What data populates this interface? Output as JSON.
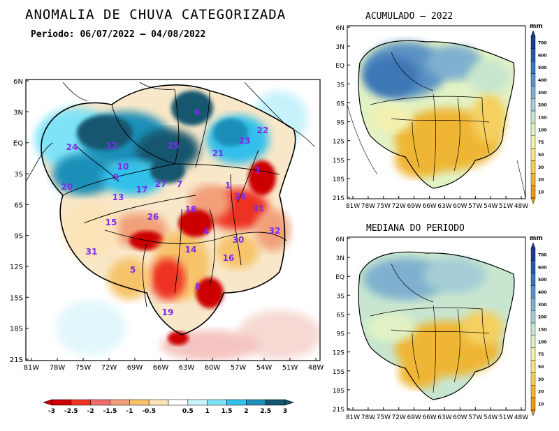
{
  "main": {
    "title": "ANOMALIA DE CHUVA CATEGORIZADA",
    "period": "Periodo: 06/07/2022 – 04/08/2022",
    "lat_labels": [
      "6N",
      "3N",
      "EQ",
      "3S",
      "6S",
      "9S",
      "12S",
      "15S",
      "18S",
      "21S"
    ],
    "lon_labels": [
      "81W",
      "78W",
      "75W",
      "72W",
      "69W",
      "66W",
      "63W",
      "60W",
      "57W",
      "54W",
      "51W",
      "48W"
    ],
    "basin_numbers": [
      {
        "id": "6"
      },
      {
        "id": "24"
      },
      {
        "id": "12"
      },
      {
        "id": "25"
      },
      {
        "id": "21"
      },
      {
        "id": "23"
      },
      {
        "id": "22"
      },
      {
        "id": "10"
      },
      {
        "id": "9"
      },
      {
        "id": "20"
      },
      {
        "id": "17"
      },
      {
        "id": "13"
      },
      {
        "id": "27"
      },
      {
        "id": "7"
      },
      {
        "id": "3"
      },
      {
        "id": "28"
      },
      {
        "id": "1"
      },
      {
        "id": "18"
      },
      {
        "id": "31"
      },
      {
        "id": "26"
      },
      {
        "id": "15"
      },
      {
        "id": "4"
      },
      {
        "id": "32"
      },
      {
        "id": "30"
      },
      {
        "id": "31"
      },
      {
        "id": "14"
      },
      {
        "id": "16"
      },
      {
        "id": "5"
      },
      {
        "id": "8"
      },
      {
        "id": "19"
      }
    ],
    "colorbar": {
      "labels": [
        "-3",
        "-2.5",
        "-2",
        "-1.5",
        "-1",
        "-0.5",
        "0.5",
        "1",
        "1.5",
        "2",
        "2.5",
        "3"
      ],
      "colors": [
        "#cc0000",
        "#ee3322",
        "#f26a6a",
        "#f2a07a",
        "#f7c36a",
        "#fbe3b8",
        "#ffffff",
        "#c8f3fb",
        "#7fe3f7",
        "#33c0ea",
        "#1f8fb8",
        "#14566e"
      ]
    }
  },
  "right_top": {
    "title": "ACUMULADO – 2022",
    "lat_labels": [
      "6N",
      "3N",
      "EQ",
      "3S",
      "6S",
      "9S",
      "12S",
      "15S",
      "18S",
      "21S"
    ],
    "lon_labels": [
      "81W",
      "78W",
      "75W",
      "72W",
      "69W",
      "66W",
      "63W",
      "60W",
      "57W",
      "54W",
      "51W",
      "48W"
    ]
  },
  "right_bottom": {
    "title": "MEDIANA DO PERIODO",
    "lat_labels": [
      "6N",
      "3N",
      "EQ",
      "3S",
      "6S",
      "9S",
      "12S",
      "15S",
      "18S",
      "21S"
    ],
    "lon_labels": [
      "81W",
      "78W",
      "75W",
      "72W",
      "69W",
      "66W",
      "63W",
      "60W",
      "57W",
      "54W",
      "51W",
      "48W"
    ]
  },
  "mm_colorbar": {
    "unit": "mm",
    "labels": [
      "700",
      "600",
      "500",
      "400",
      "300",
      "200",
      "150",
      "100",
      "75",
      "50",
      "30",
      "20",
      "10"
    ],
    "colors": [
      "#1c3f8a",
      "#2b5aa3",
      "#3c77b5",
      "#5c92c4",
      "#7fb0cf",
      "#a4cdd6",
      "#c8e6cf",
      "#e2f2c4",
      "#f3f1b0",
      "#f7e38c",
      "#f5cf5e",
      "#efb636",
      "#e89a1b"
    ]
  }
}
